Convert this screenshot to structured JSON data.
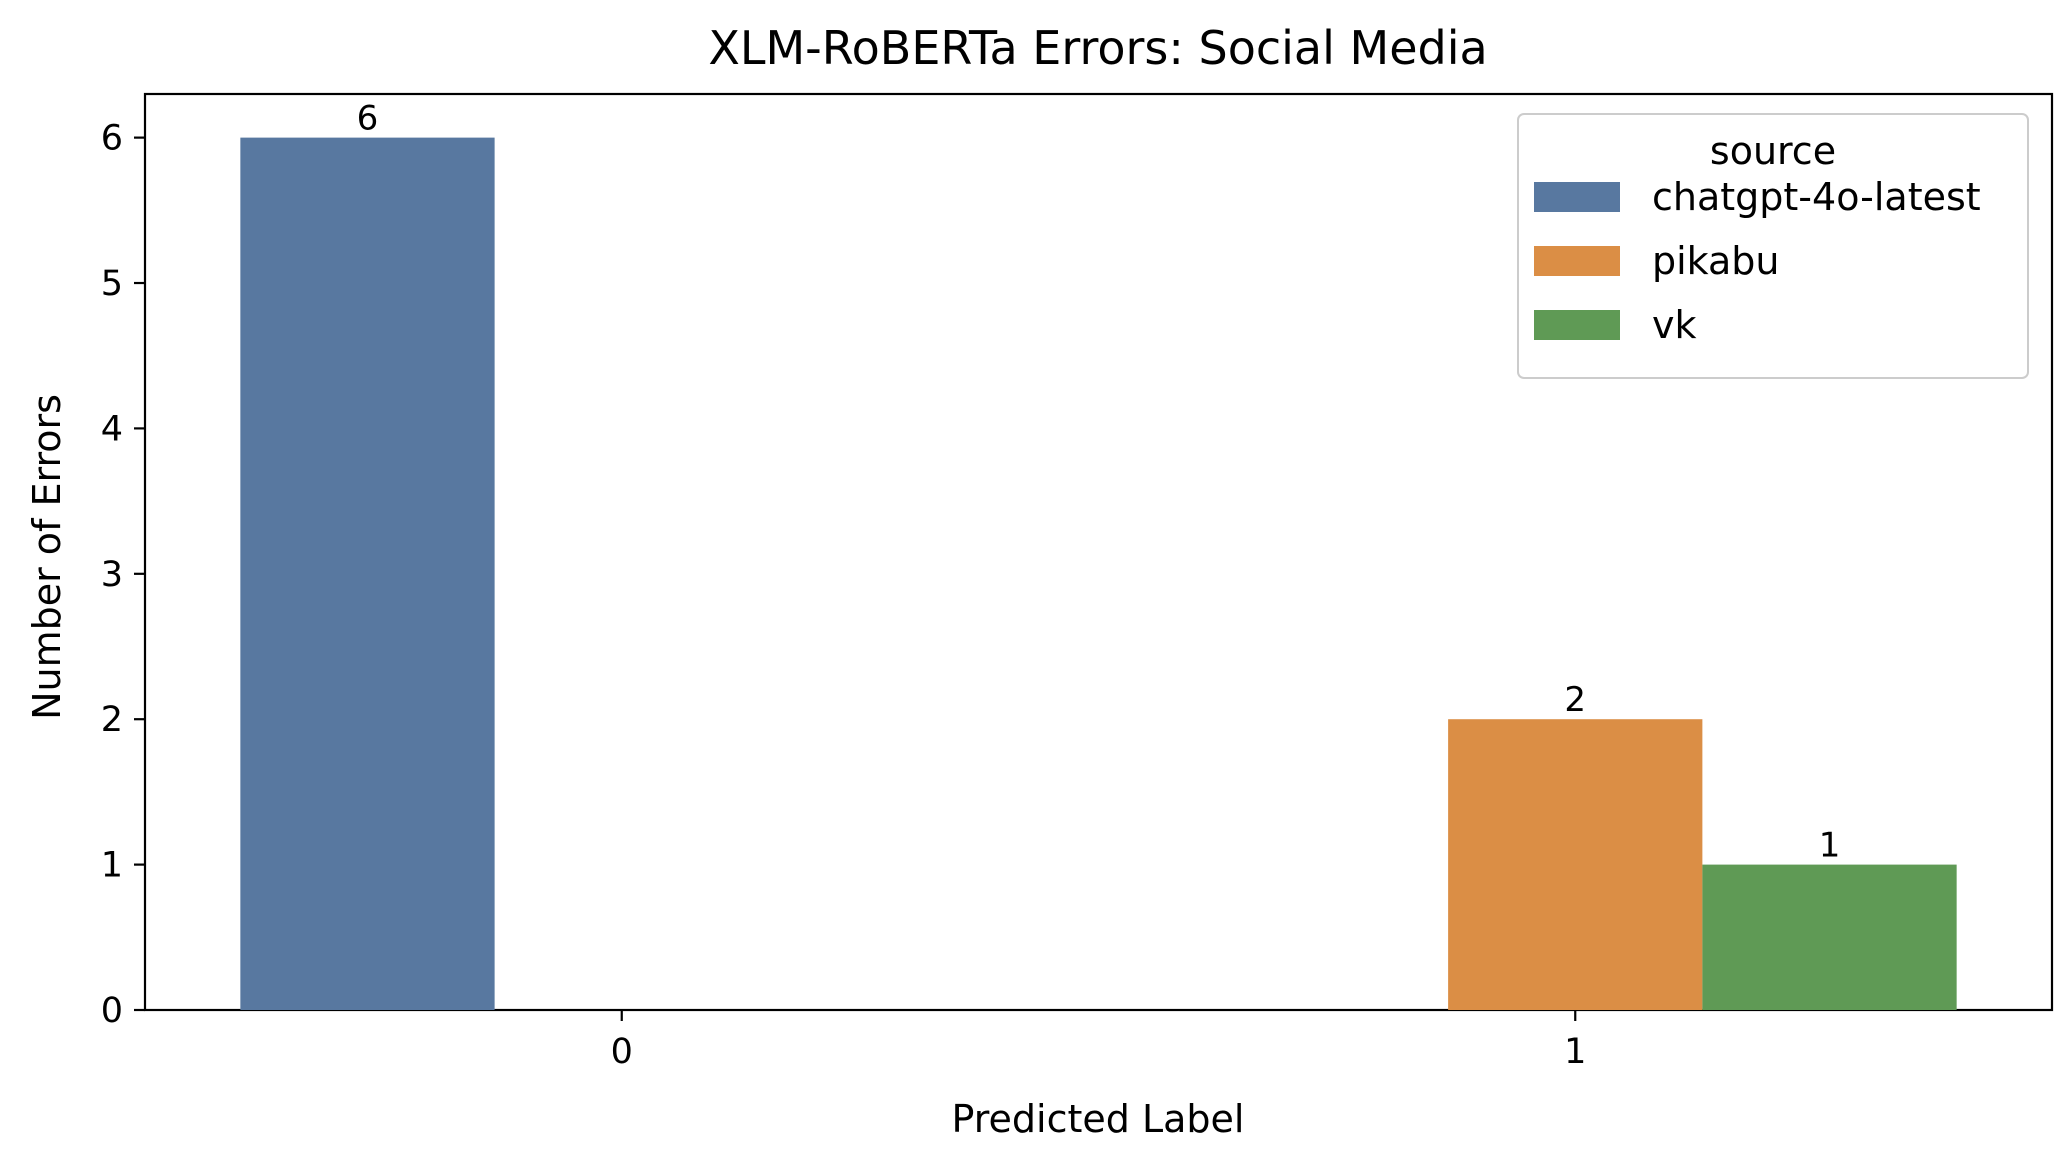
{
  "chart_data": {
    "type": "bar",
    "title": "XLM-RoBERTa Errors: Social Media",
    "xlabel": "Predicted Label",
    "ylabel": "Number of Errors",
    "categories": [
      "0",
      "1"
    ],
    "ylim": [
      0,
      6.3
    ],
    "yticks": [
      0,
      1,
      2,
      3,
      4,
      5,
      6
    ],
    "grid": false,
    "legend": {
      "title": "source",
      "placement": "top-right"
    },
    "series": [
      {
        "name": "chatgpt-4o-latest",
        "color": "#5878a0",
        "values": [
          6,
          null
        ]
      },
      {
        "name": "pikabu",
        "color": "#db8e45",
        "values": [
          null,
          2
        ]
      },
      {
        "name": "vk",
        "color": "#5f9a55",
        "values": [
          null,
          1
        ]
      }
    ]
  }
}
